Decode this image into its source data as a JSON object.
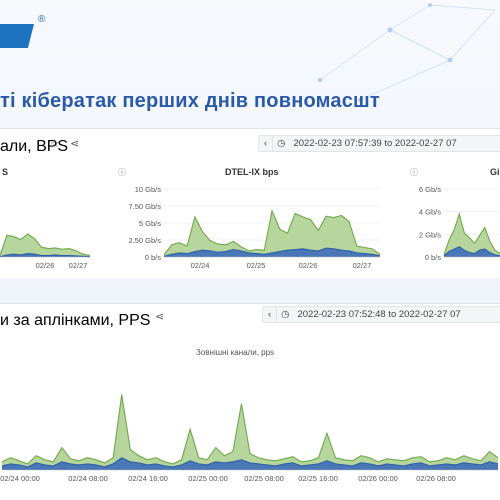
{
  "logo": {
    "reg_mark": "®"
  },
  "slide": {
    "title": "ті кібератак перших днів повномасшт"
  },
  "colors": {
    "green": "#6fa84a",
    "green_fill": "#a9cf8c",
    "blue": "#2f5fa8",
    "blue_fill": "#3e6db8",
    "title": "#2a5aa8"
  },
  "top_group": {
    "title": "али, BPS",
    "star_icon": "star-icon",
    "share_icon": "share-icon",
    "time_nav_back": "‹",
    "time_range": "2022-02-23 07:57:39 to 2022-02-27 07",
    "clock_icon": "clock-icon",
    "panels": [
      {
        "title": "S",
        "x_ticks": [
          "02/26",
          "02/27"
        ],
        "chart_data": {
          "type": "area",
          "series": [
            {
              "values": [
                0.2,
                3.1,
                2.9,
                2.5,
                3.3,
                2.6,
                1.4,
                1.2,
                1.3,
                1.1,
                1.2,
                0.9,
                0.4,
                0.2
              ]
            },
            {
              "values": [
                0.05,
                0.3,
                0.4,
                0.3,
                0.5,
                0.4,
                0.2,
                0.2,
                0.3,
                0.2,
                0.2,
                0.15,
                0.1,
                0.05
              ]
            }
          ],
          "ylim": [
            0,
            10
          ]
        }
      },
      {
        "title": "DTEL-IX bps",
        "info_icon": "ⓘ",
        "y_ticks": [
          "10 Gb/s",
          "7.50 Gb/s",
          "5 Gb/s",
          "2.50 Gb/s",
          "0 b/s"
        ],
        "x_ticks": [
          "02/24",
          "02/25",
          "02/26",
          "02/27"
        ],
        "chart_data": {
          "type": "area",
          "ylim": [
            0,
            10
          ],
          "series": [
            {
              "values": [
                0.3,
                1.8,
                2.1,
                1.6,
                5.9,
                3.7,
                2.4,
                1.9,
                1.8,
                2.3,
                1.5,
                0.9,
                1.1,
                1.0,
                6.8,
                4.1,
                3.5,
                6.4,
                5.9,
                5.5,
                3.9,
                6.0,
                5.8,
                6.1,
                5.2,
                1.6,
                1.4,
                1.2,
                0.4
              ]
            },
            {
              "values": [
                0.1,
                0.4,
                0.6,
                0.5,
                0.8,
                1.0,
                0.9,
                0.7,
                0.8,
                1.1,
                0.9,
                0.6,
                0.5,
                0.4,
                0.6,
                0.8,
                1.0,
                1.1,
                1.2,
                1.0,
                0.9,
                1.3,
                1.2,
                1.0,
                0.9,
                0.6,
                0.5,
                0.4,
                0.2
              ]
            }
          ]
        }
      },
      {
        "title": "Gi",
        "info_icon": "ⓘ",
        "y_ticks": [
          "6 Gb/s",
          "4 Gb/s",
          "2 Gb/s",
          "0 b/s"
        ],
        "chart_data": {
          "type": "area",
          "ylim": [
            0,
            6
          ],
          "series": [
            {
              "values": [
                0.2,
                1.5,
                2.4,
                3.8,
                2.1,
                1.7,
                1.2,
                1.9,
                2.6,
                1.4,
                0.6,
                0.3
              ]
            },
            {
              "values": [
                0.1,
                0.5,
                0.7,
                0.9,
                0.6,
                0.4,
                0.3,
                0.6,
                0.7,
                0.4,
                0.2,
                0.1
              ]
            }
          ]
        }
      }
    ]
  },
  "bottom_group": {
    "title": "и за аплінками, PPS",
    "share_icon": "share-icon",
    "time_nav_back": "‹",
    "time_range": "2022-02-23 07:52:48 to 2022-02-27 07",
    "panel": {
      "title": "Зовнішні канали, pps",
      "x_ticks": [
        "02/24 00:00",
        "02/24 08:00",
        "02/24 16:00",
        "02/25 00:00",
        "02/25 08:00",
        "02/25 16:00",
        "02/26 00:00",
        "02/26 08:00"
      ],
      "chart_data": {
        "type": "area",
        "ylim": [
          0,
          100
        ],
        "series": [
          {
            "values": [
              8,
              12,
              9,
              6,
              14,
              10,
              8,
              22,
              11,
              9,
              12,
              10,
              7,
              12,
              74,
              20,
              14,
              10,
              12,
              8,
              6,
              10,
              40,
              12,
              10,
              22,
              14,
              18,
              65,
              16,
              12,
              10,
              9,
              11,
              13,
              8,
              9,
              12,
              36,
              12,
              10,
              9,
              14,
              12,
              8,
              11,
              10,
              9,
              12,
              13,
              8,
              9,
              12,
              10,
              14,
              11,
              9,
              18,
              12
            ]
          },
          {
            "values": [
              4,
              6,
              5,
              3,
              7,
              5,
              4,
              8,
              6,
              5,
              6,
              5,
              3,
              6,
              12,
              8,
              7,
              5,
              6,
              4,
              3,
              5,
              9,
              6,
              5,
              8,
              7,
              8,
              10,
              7,
              6,
              5,
              4,
              6,
              7,
              4,
              5,
              6,
              9,
              6,
              5,
              4,
              7,
              6,
              4,
              6,
              5,
              4,
              6,
              7,
              4,
              5,
              6,
              5,
              7,
              6,
              5,
              8,
              6
            ]
          }
        ]
      }
    }
  }
}
